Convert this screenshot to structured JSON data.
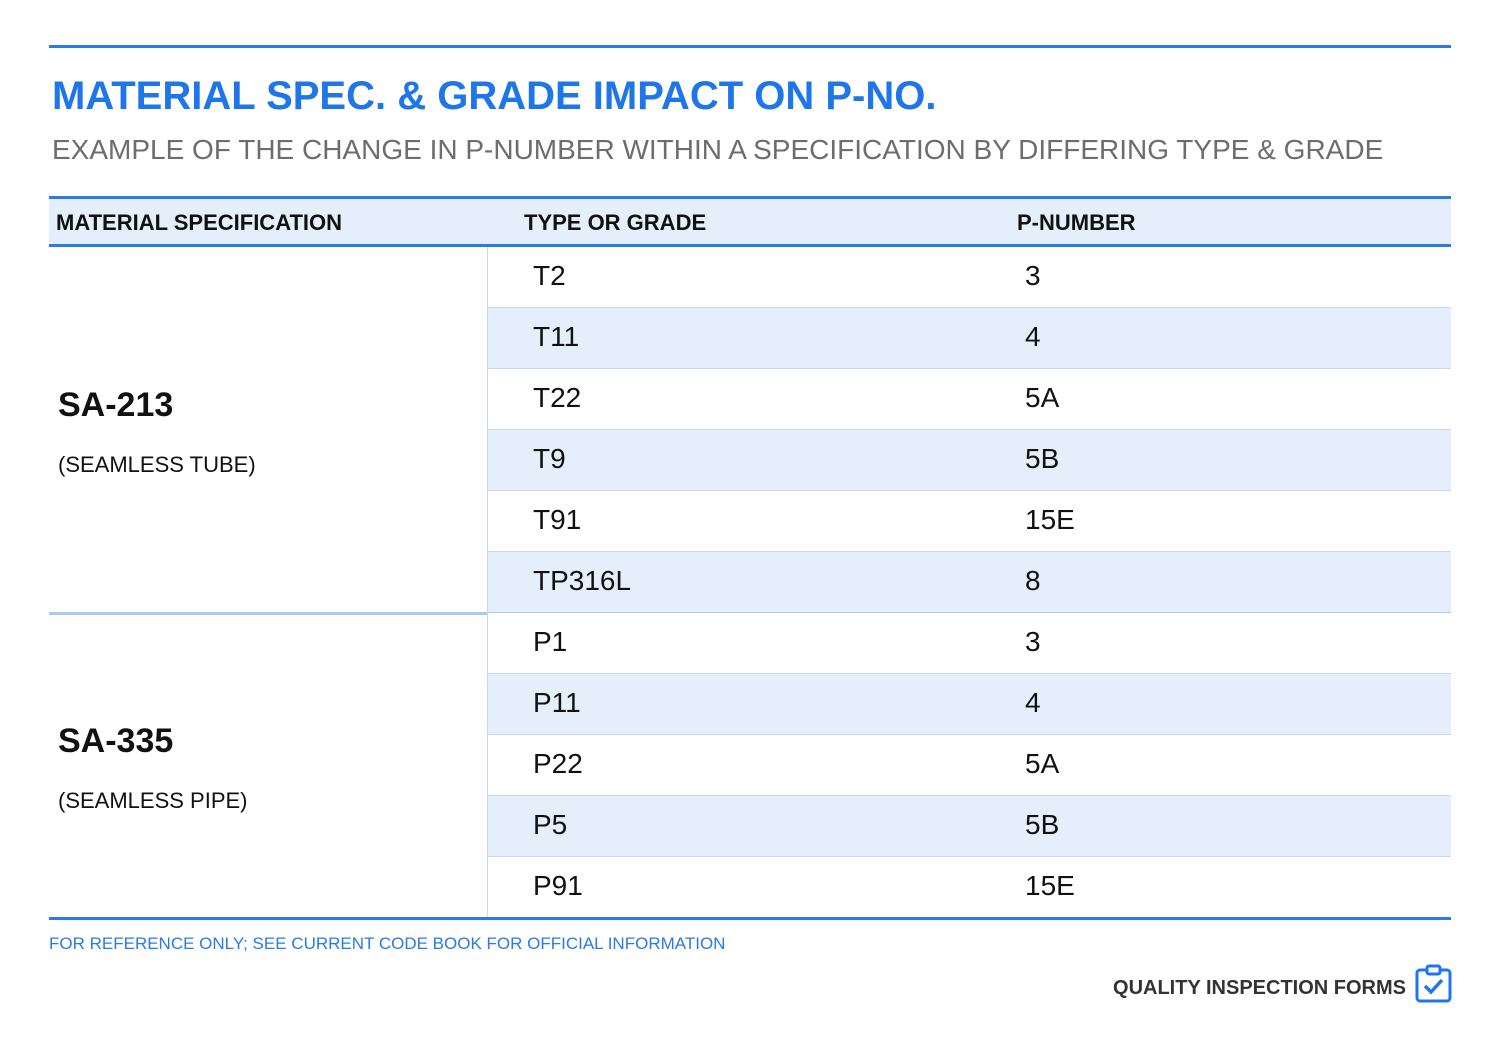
{
  "header": {
    "title": "MATERIAL SPEC. & GRADE IMPACT ON P-NO.",
    "subtitle": "EXAMPLE OF THE CHANGE IN P-NUMBER WITHIN A SPECIFICATION BY DIFFERING TYPE & GRADE"
  },
  "table": {
    "columns": [
      "MATERIAL SPECIFICATION",
      "TYPE OR GRADE",
      "P-NUMBER"
    ],
    "groups": [
      {
        "spec": "SA-213",
        "note": "(SEAMLESS TUBE)",
        "rows": [
          [
            "T2",
            "3"
          ],
          [
            "T11",
            "4"
          ],
          [
            "T22",
            "5A"
          ],
          [
            "T9",
            "5B"
          ],
          [
            "T91",
            "15E"
          ],
          [
            "TP316L",
            "8"
          ]
        ]
      },
      {
        "spec": "SA-335",
        "note": "(SEAMLESS PIPE)",
        "rows": [
          [
            "P1",
            "3"
          ],
          [
            "P11",
            "4"
          ],
          [
            "P22",
            "5A"
          ],
          [
            "P5",
            "5B"
          ],
          [
            "P91",
            "15E"
          ]
        ]
      }
    ]
  },
  "footer": {
    "disclaimer": "FOR REFERENCE ONLY; SEE CURRENT CODE BOOK FOR OFFICIAL INFORMATION",
    "brand": "QUALITY INSPECTION FORMS"
  }
}
